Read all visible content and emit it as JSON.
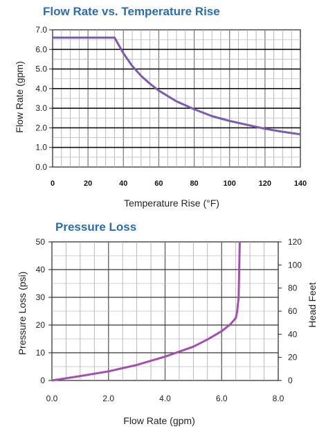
{
  "chart_data": [
    {
      "type": "line",
      "title": "Flow Rate vs. Temperature Rise",
      "xlabel": "Temperature Rise (°F)",
      "ylabel": "Flow Rate  (gpm)",
      "xlim": [
        0,
        140
      ],
      "ylim": [
        0,
        7
      ],
      "x_ticks": [
        "0",
        "20",
        "40",
        "60",
        "80",
        "100",
        "120",
        "140"
      ],
      "y_ticks": [
        "0.0",
        "1.0",
        "2.0",
        "3.0",
        "4.0",
        "5.0",
        "6.0",
        "7.0"
      ],
      "grid": true,
      "series_color": "#7b5bb0",
      "series": [
        {
          "x": [
            0,
            35,
            40,
            45,
            50,
            55,
            60,
            70,
            80,
            90,
            100,
            110,
            120,
            130,
            140
          ],
          "y": [
            6.6,
            6.6,
            5.8,
            5.15,
            4.65,
            4.25,
            3.9,
            3.35,
            2.95,
            2.6,
            2.35,
            2.15,
            1.95,
            1.8,
            1.67
          ]
        }
      ]
    },
    {
      "type": "line",
      "title": "Pressure Loss",
      "xlabel": "Flow Rate  (gpm)",
      "ylabel": "Pressure Loss (psi)",
      "y2label": "Head Feet",
      "xlim": [
        0,
        8
      ],
      "ylim": [
        0,
        50
      ],
      "y2lim": [
        0,
        120
      ],
      "x_ticks": [
        "0.0",
        "2.0",
        "4.0",
        "6.0",
        "8.0"
      ],
      "y_ticks": [
        "0",
        "10",
        "20",
        "30",
        "40",
        "50"
      ],
      "y2_ticks": [
        "0",
        "20",
        "40",
        "60",
        "80",
        "100",
        "120"
      ],
      "grid": true,
      "series_color": "#a24fb0",
      "series": [
        {
          "x": [
            0,
            1,
            2,
            3,
            4,
            5,
            5.5,
            6,
            6.3,
            6.5,
            6.55,
            6.6,
            6.62,
            6.64
          ],
          "y": [
            0,
            1.6,
            3.3,
            5.6,
            8.6,
            12.2,
            14.8,
            17.8,
            20.2,
            22.5,
            25,
            30,
            40,
            50
          ]
        }
      ]
    }
  ]
}
